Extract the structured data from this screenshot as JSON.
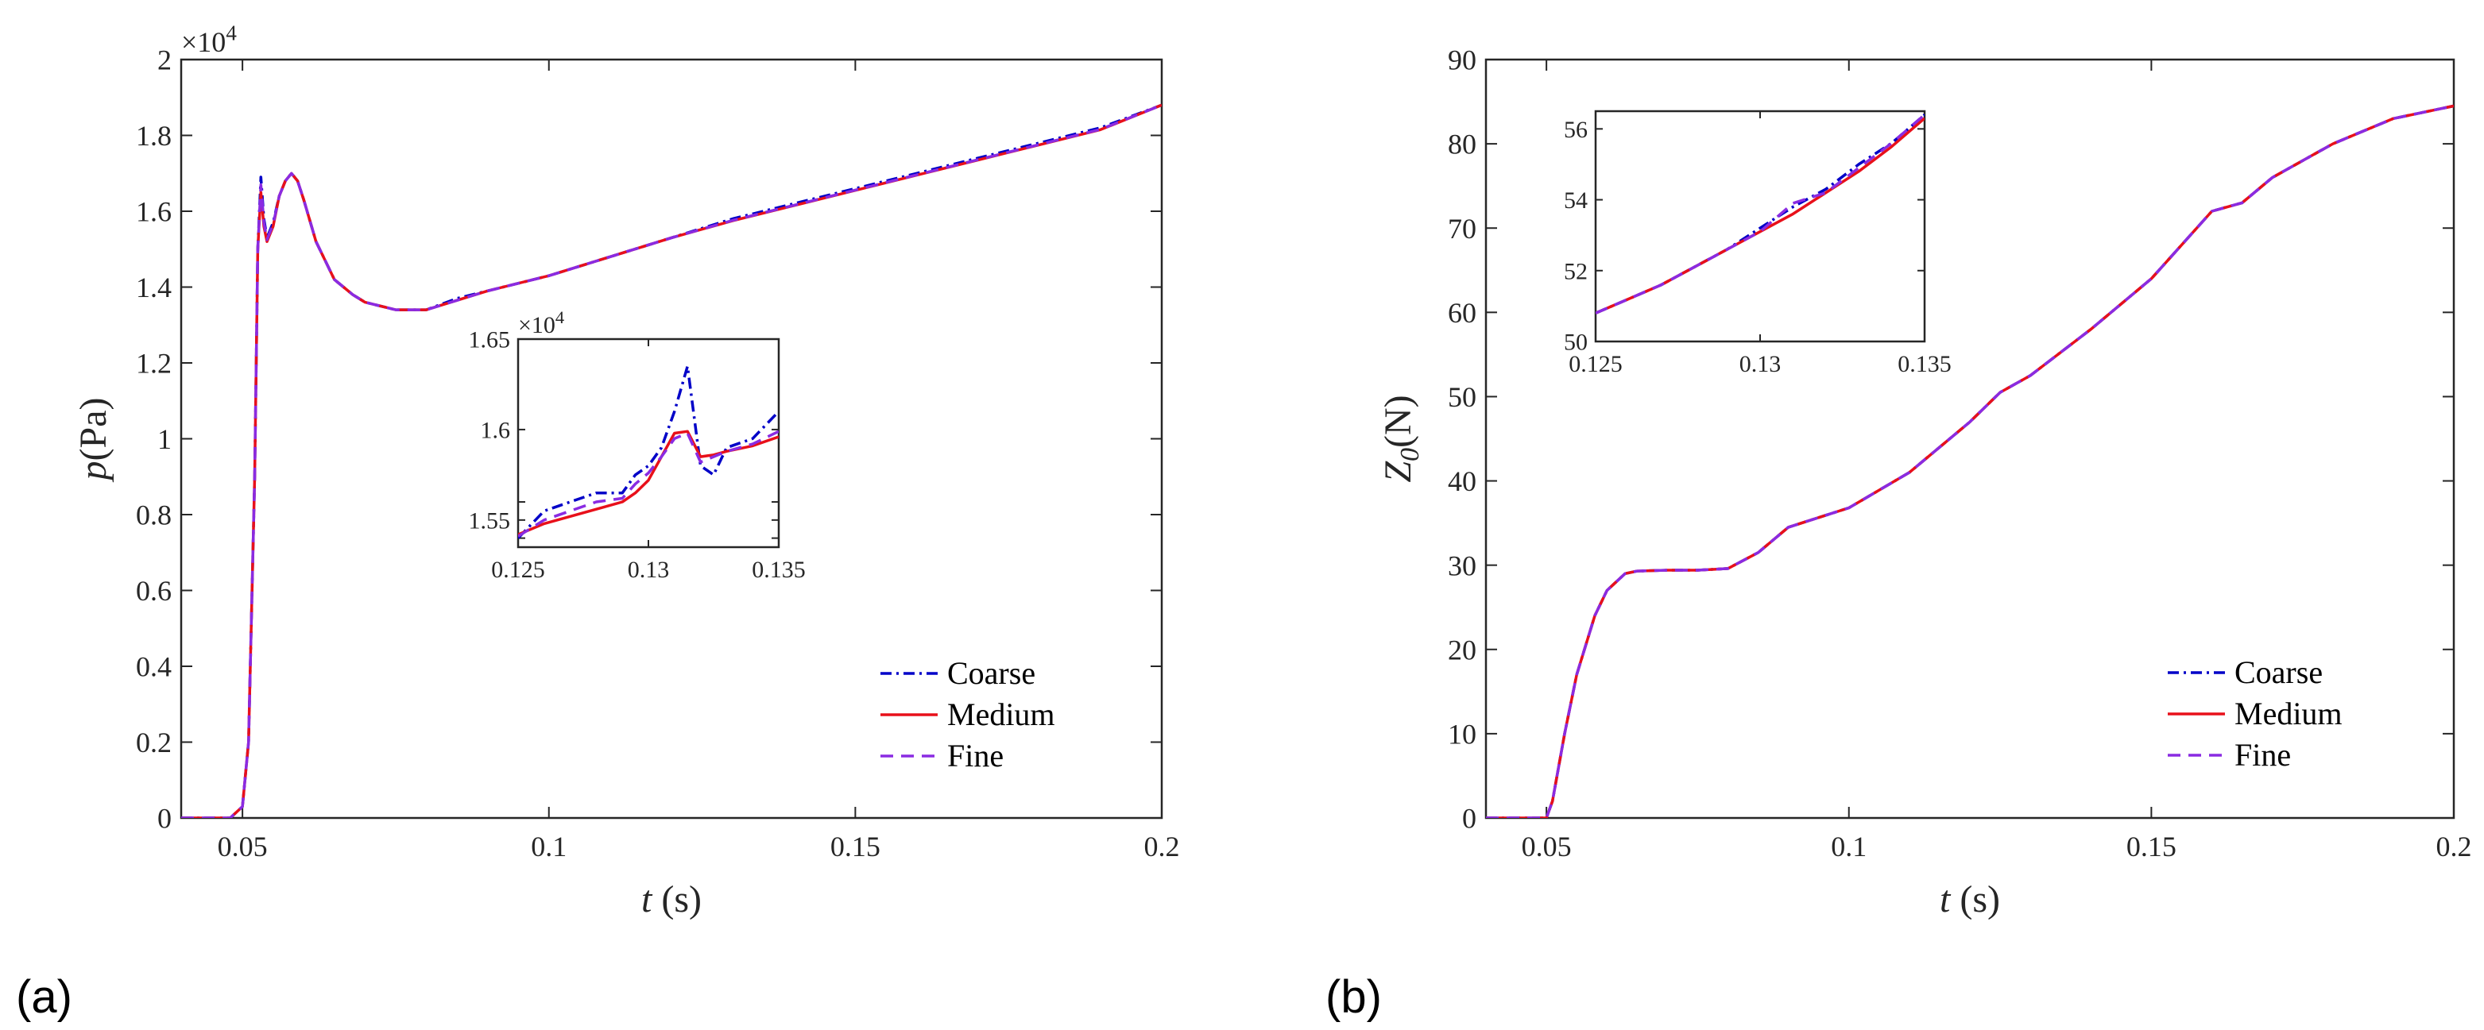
{
  "colors": {
    "coarse": "#0000c8",
    "medium": "#e8101a",
    "fine": "#8a2be2",
    "axis": "#262626"
  },
  "panels": [
    {
      "label": "(a)"
    },
    {
      "label": "(b)"
    }
  ],
  "chart_data": [
    {
      "type": "line",
      "panel": "(a)",
      "ylabel_var": "p",
      "ylabel_unit": "(Pa)",
      "xlabel_var": "t",
      "xlabel_unit": " (s)",
      "xlim": [
        0.04,
        0.2
      ],
      "ylim": [
        0,
        20000
      ],
      "xticks": [
        0.05,
        0.1,
        0.15,
        0.2
      ],
      "xtick_labels": [
        "0.05",
        "0.1",
        "0.15",
        "0.2"
      ],
      "yticks": [
        0,
        2000,
        4000,
        6000,
        8000,
        10000,
        12000,
        14000,
        16000,
        18000,
        20000
      ],
      "ytick_labels": [
        "0",
        "0.2",
        "0.4",
        "0.6",
        "0.8",
        "1",
        "1.2",
        "1.4",
        "1.6",
        "1.8",
        "2"
      ],
      "exponent_label": "×10",
      "exponent_power": "4",
      "legend": [
        "Coarse",
        "Medium",
        "Fine"
      ],
      "legend_position": "bottom-right",
      "x": [
        0.04,
        0.048,
        0.05,
        0.051,
        0.052,
        0.0525,
        0.053,
        0.0535,
        0.054,
        0.055,
        0.056,
        0.057,
        0.058,
        0.059,
        0.06,
        0.062,
        0.065,
        0.068,
        0.07,
        0.075,
        0.08,
        0.085,
        0.09,
        0.1,
        0.11,
        0.12,
        0.13,
        0.14,
        0.15,
        0.16,
        0.17,
        0.18,
        0.19,
        0.2
      ],
      "series": [
        {
          "name": "Coarse",
          "values": [
            0,
            0,
            300,
            2000,
            9000,
            15000,
            16900,
            15800,
            15300,
            15700,
            16400,
            16800,
            17000,
            16800,
            16300,
            15200,
            14200,
            13800,
            13600,
            13400,
            13400,
            13700,
            13900,
            14300,
            14800,
            15300,
            15800,
            16200,
            16600,
            17000,
            17400,
            17800,
            18200,
            18800
          ]
        },
        {
          "name": "Medium",
          "values": [
            0,
            0,
            300,
            2000,
            9000,
            15000,
            16500,
            15600,
            15200,
            15600,
            16400,
            16800,
            17000,
            16800,
            16300,
            15200,
            14200,
            13800,
            13600,
            13400,
            13400,
            13650,
            13900,
            14300,
            14800,
            15300,
            15750,
            16150,
            16550,
            16950,
            17350,
            17750,
            18150,
            18800
          ]
        },
        {
          "name": "Fine",
          "values": [
            0,
            0,
            300,
            2000,
            9000,
            15000,
            16700,
            15700,
            15250,
            15650,
            16400,
            16800,
            17000,
            16800,
            16300,
            15200,
            14200,
            13800,
            13600,
            13400,
            13400,
            13650,
            13900,
            14300,
            14800,
            15300,
            15760,
            16160,
            16560,
            16960,
            17360,
            17760,
            18160,
            18800
          ]
        }
      ],
      "inset": {
        "xlim": [
          0.125,
          0.135
        ],
        "ylim": [
          15350,
          16500
        ],
        "xticks": [
          0.125,
          0.13,
          0.135
        ],
        "xtick_labels": [
          "0.125",
          "0.13",
          "0.135"
        ],
        "yticks": [
          15400,
          15500,
          15600,
          16000,
          16500
        ],
        "ytick_labels": [
          "",
          "1.55",
          "",
          "1.6",
          "1.65"
        ],
        "exponent_label": "×10",
        "exponent_power": "4",
        "x": [
          0.125,
          0.126,
          0.127,
          0.128,
          0.129,
          0.1295,
          0.13,
          0.1305,
          0.131,
          0.1315,
          0.132,
          0.1325,
          0.133,
          0.134,
          0.135
        ],
        "series": [
          {
            "name": "Coarse",
            "values": [
              15400,
              15550,
              15600,
              15650,
              15650,
              15750,
              15800,
              15900,
              16100,
              16350,
              15800,
              15750,
              15900,
              15950,
              16100
            ]
          },
          {
            "name": "Medium",
            "values": [
              15420,
              15480,
              15520,
              15560,
              15600,
              15650,
              15720,
              15850,
              15980,
              15990,
              15850,
              15860,
              15880,
              15910,
              15960
            ]
          },
          {
            "name": "Fine",
            "values": [
              15410,
              15500,
              15550,
              15600,
              15620,
              15700,
              15760,
              15850,
              15950,
              15980,
              15820,
              15850,
              15880,
              15920,
              15990
            ]
          }
        ]
      }
    },
    {
      "type": "line",
      "panel": "(b)",
      "ylabel_var": "Z",
      "ylabel_sub": "0",
      "ylabel_unit": "(N)",
      "xlabel_var": "t",
      "xlabel_unit": " (s)",
      "xlim": [
        0.04,
        0.2
      ],
      "ylim": [
        0,
        90
      ],
      "xticks": [
        0.05,
        0.1,
        0.15,
        0.2
      ],
      "xtick_labels": [
        "0.05",
        "0.1",
        "0.15",
        "0.2"
      ],
      "yticks": [
        0,
        10,
        20,
        30,
        40,
        50,
        60,
        70,
        80,
        90
      ],
      "ytick_labels": [
        "0",
        "10",
        "20",
        "30",
        "40",
        "50",
        "60",
        "70",
        "80",
        "90"
      ],
      "legend": [
        "Coarse",
        "Medium",
        "Fine"
      ],
      "legend_position": "bottom-right",
      "x": [
        0.04,
        0.05,
        0.051,
        0.053,
        0.055,
        0.058,
        0.06,
        0.063,
        0.065,
        0.07,
        0.075,
        0.08,
        0.085,
        0.09,
        0.1,
        0.11,
        0.12,
        0.125,
        0.13,
        0.14,
        0.15,
        0.16,
        0.165,
        0.17,
        0.18,
        0.19,
        0.2
      ],
      "series": [
        {
          "name": "Coarse",
          "values": [
            0,
            0,
            2,
            10,
            17,
            24,
            27,
            29,
            29.3,
            29.4,
            29.4,
            29.6,
            31.5,
            34.5,
            36.8,
            41,
            47,
            50.5,
            52.5,
            58,
            64,
            72,
            73,
            76,
            80,
            83,
            84.5
          ]
        },
        {
          "name": "Medium",
          "values": [
            0,
            0,
            2,
            10,
            17,
            24,
            27,
            29,
            29.3,
            29.4,
            29.4,
            29.6,
            31.5,
            34.5,
            36.8,
            41,
            47,
            50.5,
            52.5,
            58,
            64,
            72,
            73,
            76,
            80,
            83,
            84.5
          ]
        },
        {
          "name": "Fine",
          "values": [
            0,
            0,
            2,
            10,
            17,
            24,
            27,
            29,
            29.3,
            29.4,
            29.4,
            29.6,
            31.5,
            34.5,
            36.8,
            41,
            47,
            50.5,
            52.5,
            58,
            64,
            72,
            73,
            76,
            80,
            83,
            84.5
          ]
        }
      ],
      "inset": {
        "xlim": [
          0.125,
          0.135
        ],
        "ylim": [
          50,
          56.5
        ],
        "xticks": [
          0.125,
          0.13,
          0.135
        ],
        "xtick_labels": [
          "0.125",
          "0.13",
          "0.135"
        ],
        "yticks": [
          50,
          52,
          54,
          56
        ],
        "ytick_labels": [
          "50",
          "52",
          "54",
          "56"
        ],
        "x": [
          0.125,
          0.126,
          0.127,
          0.128,
          0.129,
          0.13,
          0.131,
          0.132,
          0.133,
          0.134,
          0.135
        ],
        "series": [
          {
            "name": "Coarse",
            "values": [
              50.8,
              51.2,
              51.6,
              52.1,
              52.6,
              53.2,
              53.8,
              54.3,
              55.0,
              55.6,
              56.4
            ]
          },
          {
            "name": "Medium",
            "values": [
              50.8,
              51.2,
              51.6,
              52.1,
              52.6,
              53.1,
              53.6,
              54.2,
              54.8,
              55.5,
              56.3
            ]
          },
          {
            "name": "Fine",
            "values": [
              50.8,
              51.2,
              51.6,
              52.1,
              52.6,
              53.1,
              53.9,
              54.2,
              54.9,
              55.6,
              56.4
            ]
          }
        ]
      }
    }
  ]
}
